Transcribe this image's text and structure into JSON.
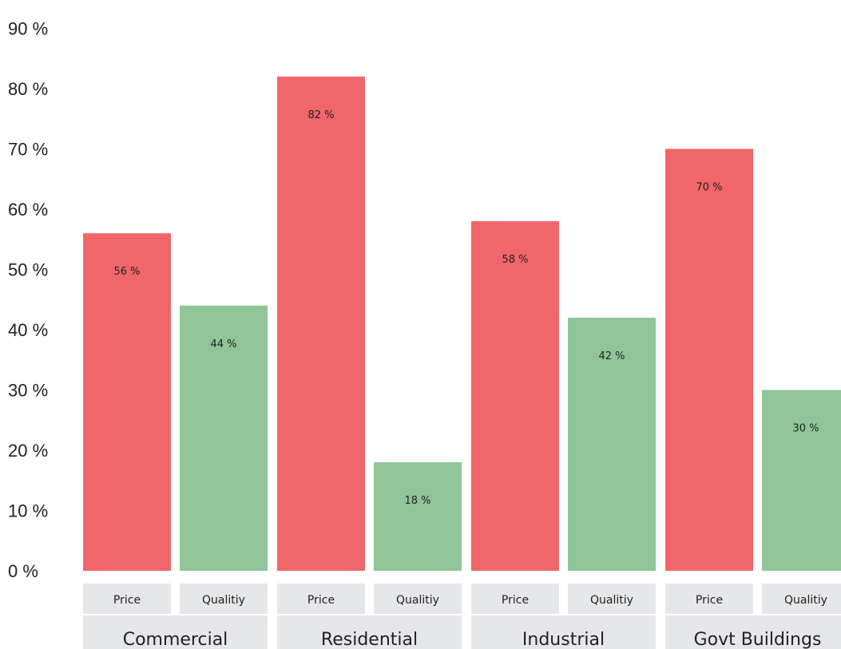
{
  "chart_data": {
    "type": "bar",
    "categories": [
      "Commercial",
      "Residential",
      "Industrial",
      "Govt Buildings"
    ],
    "sub_categories": [
      "Price",
      "Qualitiy"
    ],
    "series": [
      {
        "name": "Price",
        "values": [
          56,
          82,
          58,
          70
        ]
      },
      {
        "name": "Qualitiy",
        "values": [
          44,
          18,
          42,
          30
        ]
      }
    ],
    "value_labels": {
      "Price": [
        "56 %",
        "82 %",
        "58 %",
        "70 %"
      ],
      "Qualitiy": [
        "44 %",
        "18 %",
        "42 %",
        "30 %"
      ]
    },
    "y_ticks": [
      "0 %",
      "10 %",
      "20 %",
      "30 %",
      "40 %",
      "50 %",
      "60 %",
      "70 %",
      "80 %",
      "90 %"
    ],
    "ylim": [
      0,
      90
    ],
    "title": "",
    "xlabel": "",
    "ylabel": "",
    "grid": false,
    "legend": "none",
    "colors": {
      "Price": "#f0666b",
      "Qualitiy": "#8fc597",
      "label_bg": "#e6e7e9"
    }
  }
}
